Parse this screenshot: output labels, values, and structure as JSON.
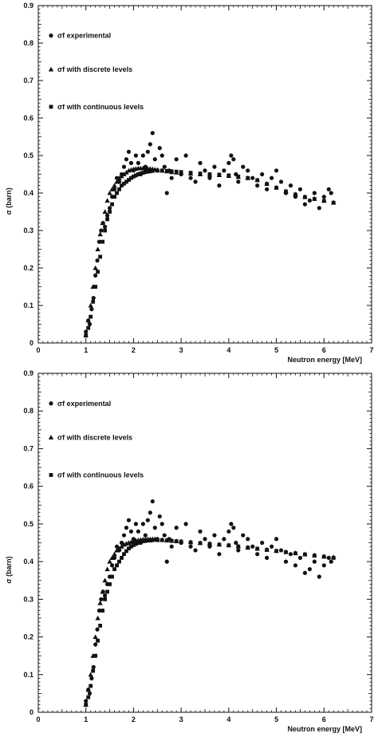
{
  "chart_data": [
    {
      "type": "scatter",
      "title": "",
      "xlabel": "Neutron energy [MeV]",
      "ylabel": "σ (barn)",
      "xlim": [
        0,
        7
      ],
      "ylim": [
        0,
        0.9
      ],
      "xticks": [
        "0",
        "1",
        "2",
        "3",
        "4",
        "5",
        "6",
        "7"
      ],
      "yticks": [
        "0",
        "0.1",
        "0.2",
        "0.3",
        "0.4",
        "0.5",
        "0.6",
        "0.7",
        "0.8",
        "0.9"
      ],
      "grid": false,
      "legend_position": "top-left",
      "series": [
        {
          "name": "σf experimental",
          "marker": "circle",
          "x": [
            1.0,
            1.05,
            1.08,
            1.12,
            1.16,
            1.2,
            1.24,
            1.28,
            1.32,
            1.36,
            1.4,
            1.45,
            1.5,
            1.55,
            1.6,
            1.65,
            1.7,
            1.75,
            1.8,
            1.85,
            1.9,
            1.95,
            2.0,
            2.05,
            2.1,
            2.15,
            2.2,
            2.25,
            2.3,
            2.35,
            2.4,
            2.45,
            2.5,
            2.55,
            2.6,
            2.65,
            2.7,
            2.75,
            2.8,
            2.9,
            3.0,
            3.1,
            3.2,
            3.3,
            3.4,
            3.5,
            3.6,
            3.7,
            3.8,
            3.9,
            4.0,
            4.05,
            4.1,
            4.15,
            4.2,
            4.3,
            4.4,
            4.5,
            4.6,
            4.7,
            4.8,
            4.9,
            5.0,
            5.1,
            5.2,
            5.3,
            5.4,
            5.5,
            5.6,
            5.7,
            5.8,
            5.9,
            6.0,
            6.1,
            6.15
          ],
          "y": [
            0.03,
            0.06,
            0.05,
            0.09,
            0.12,
            0.18,
            0.22,
            0.27,
            0.3,
            0.32,
            0.31,
            0.34,
            0.36,
            0.39,
            0.41,
            0.44,
            0.43,
            0.45,
            0.47,
            0.49,
            0.51,
            0.48,
            0.46,
            0.5,
            0.48,
            0.45,
            0.5,
            0.47,
            0.51,
            0.53,
            0.56,
            0.49,
            0.46,
            0.52,
            0.5,
            0.47,
            0.4,
            0.46,
            0.44,
            0.49,
            0.45,
            0.5,
            0.44,
            0.43,
            0.48,
            0.46,
            0.44,
            0.47,
            0.42,
            0.46,
            0.48,
            0.5,
            0.49,
            0.45,
            0.43,
            0.47,
            0.46,
            0.44,
            0.42,
            0.45,
            0.41,
            0.44,
            0.46,
            0.43,
            0.4,
            0.42,
            0.39,
            0.41,
            0.37,
            0.38,
            0.4,
            0.36,
            0.39,
            0.41,
            0.4
          ]
        },
        {
          "name": "σf  with discrete levels",
          "marker": "triangle",
          "x": [
            1.0,
            1.05,
            1.1,
            1.15,
            1.2,
            1.25,
            1.3,
            1.35,
            1.4,
            1.45,
            1.5,
            1.55,
            1.6,
            1.65,
            1.7,
            1.75,
            1.8,
            1.85,
            1.9,
            1.95,
            2.0,
            2.05,
            2.1,
            2.15,
            2.2,
            2.25,
            2.3,
            2.35,
            2.4,
            2.45,
            2.5,
            2.6,
            2.7,
            2.8,
            2.9,
            3.0,
            3.2,
            3.4,
            3.6,
            3.8,
            4.0,
            4.2,
            4.4,
            4.6,
            4.8,
            5.0,
            5.2,
            5.4,
            5.6,
            5.8,
            6.0,
            6.2
          ],
          "y": [
            0.02,
            0.06,
            0.1,
            0.15,
            0.2,
            0.25,
            0.29,
            0.32,
            0.35,
            0.38,
            0.4,
            0.41,
            0.42,
            0.43,
            0.44,
            0.445,
            0.45,
            0.455,
            0.46,
            0.462,
            0.464,
            0.465,
            0.466,
            0.466,
            0.466,
            0.466,
            0.465,
            0.465,
            0.464,
            0.463,
            0.462,
            0.46,
            0.458,
            0.456,
            0.455,
            0.454,
            0.452,
            0.45,
            0.449,
            0.448,
            0.446,
            0.443,
            0.44,
            0.435,
            0.425,
            0.415,
            0.405,
            0.397,
            0.39,
            0.385,
            0.38,
            0.375
          ]
        },
        {
          "name": "σf with continuous levels",
          "marker": "square",
          "x": [
            1.0,
            1.05,
            1.1,
            1.15,
            1.2,
            1.25,
            1.3,
            1.35,
            1.4,
            1.45,
            1.5,
            1.55,
            1.6,
            1.65,
            1.7,
            1.75,
            1.8,
            1.85,
            1.9,
            1.95,
            2.0,
            2.05,
            2.1,
            2.15,
            2.2,
            2.25,
            2.3,
            2.35,
            2.4,
            2.5,
            2.6,
            2.7,
            2.8,
            2.9,
            3.0,
            3.2,
            3.4,
            3.6,
            3.8,
            4.0,
            4.2,
            4.4,
            4.6,
            4.8,
            5.0,
            5.2,
            5.4,
            5.6,
            5.8,
            6.0,
            6.2
          ],
          "y": [
            0.02,
            0.04,
            0.07,
            0.11,
            0.15,
            0.19,
            0.23,
            0.27,
            0.3,
            0.33,
            0.35,
            0.37,
            0.39,
            0.4,
            0.41,
            0.42,
            0.425,
            0.43,
            0.435,
            0.44,
            0.444,
            0.447,
            0.45,
            0.452,
            0.454,
            0.456,
            0.457,
            0.458,
            0.459,
            0.46,
            0.46,
            0.459,
            0.458,
            0.457,
            0.456,
            0.454,
            0.452,
            0.45,
            0.449,
            0.447,
            0.444,
            0.44,
            0.434,
            0.424,
            0.414,
            0.404,
            0.396,
            0.389,
            0.384,
            0.379,
            0.374
          ]
        }
      ]
    },
    {
      "type": "scatter",
      "title": "",
      "xlabel": "Neutron energy [MeV]",
      "ylabel": "σ (barn)",
      "xlim": [
        0,
        7
      ],
      "ylim": [
        0,
        0.9
      ],
      "xticks": [
        "0",
        "1",
        "2",
        "3",
        "4",
        "5",
        "6",
        "7"
      ],
      "yticks": [
        "0",
        "0.1",
        "0.2",
        "0.3",
        "0.4",
        "0.5",
        "0.6",
        "0.7",
        "0.8",
        "0.9"
      ],
      "grid": false,
      "legend_position": "top-left",
      "series": [
        {
          "name": "σf experimental",
          "marker": "circle",
          "x": [
            1.0,
            1.05,
            1.08,
            1.12,
            1.16,
            1.2,
            1.24,
            1.28,
            1.32,
            1.36,
            1.4,
            1.45,
            1.5,
            1.55,
            1.6,
            1.65,
            1.7,
            1.75,
            1.8,
            1.85,
            1.9,
            1.95,
            2.0,
            2.05,
            2.1,
            2.15,
            2.2,
            2.25,
            2.3,
            2.35,
            2.4,
            2.45,
            2.5,
            2.55,
            2.6,
            2.65,
            2.7,
            2.75,
            2.8,
            2.9,
            3.0,
            3.1,
            3.2,
            3.3,
            3.4,
            3.5,
            3.6,
            3.7,
            3.8,
            3.9,
            4.0,
            4.05,
            4.1,
            4.15,
            4.2,
            4.3,
            4.4,
            4.5,
            4.6,
            4.7,
            4.8,
            4.9,
            5.0,
            5.1,
            5.2,
            5.3,
            5.4,
            5.5,
            5.6,
            5.7,
            5.8,
            5.9,
            6.0,
            6.1,
            6.15
          ],
          "y": [
            0.03,
            0.06,
            0.05,
            0.09,
            0.12,
            0.18,
            0.22,
            0.27,
            0.3,
            0.32,
            0.31,
            0.34,
            0.36,
            0.39,
            0.41,
            0.44,
            0.43,
            0.45,
            0.47,
            0.49,
            0.51,
            0.48,
            0.46,
            0.5,
            0.48,
            0.45,
            0.5,
            0.47,
            0.51,
            0.53,
            0.56,
            0.49,
            0.46,
            0.52,
            0.5,
            0.47,
            0.4,
            0.46,
            0.44,
            0.49,
            0.45,
            0.5,
            0.44,
            0.43,
            0.48,
            0.46,
            0.44,
            0.47,
            0.42,
            0.46,
            0.48,
            0.5,
            0.49,
            0.45,
            0.43,
            0.47,
            0.46,
            0.44,
            0.42,
            0.45,
            0.41,
            0.44,
            0.46,
            0.43,
            0.4,
            0.42,
            0.39,
            0.41,
            0.37,
            0.38,
            0.4,
            0.36,
            0.39,
            0.41,
            0.4
          ]
        },
        {
          "name": "σf  with discrete levels",
          "marker": "triangle",
          "x": [
            1.0,
            1.05,
            1.1,
            1.15,
            1.2,
            1.25,
            1.3,
            1.35,
            1.4,
            1.45,
            1.5,
            1.55,
            1.6,
            1.65,
            1.7,
            1.75,
            1.8,
            1.85,
            1.9,
            1.95,
            2.0,
            2.05,
            2.1,
            2.15,
            2.2,
            2.25,
            2.3,
            2.35,
            2.4,
            2.45,
            2.5,
            2.6,
            2.7,
            2.8,
            2.9,
            3.0,
            3.2,
            3.4,
            3.6,
            3.8,
            4.0,
            4.2,
            4.4,
            4.6,
            4.8,
            5.0,
            5.2,
            5.4,
            5.6,
            5.8,
            6.0,
            6.2
          ],
          "y": [
            0.02,
            0.06,
            0.1,
            0.15,
            0.2,
            0.25,
            0.29,
            0.32,
            0.35,
            0.38,
            0.4,
            0.41,
            0.42,
            0.43,
            0.435,
            0.44,
            0.445,
            0.448,
            0.45,
            0.452,
            0.454,
            0.456,
            0.457,
            0.458,
            0.459,
            0.46,
            0.46,
            0.46,
            0.46,
            0.46,
            0.459,
            0.458,
            0.457,
            0.456,
            0.455,
            0.454,
            0.452,
            0.45,
            0.448,
            0.446,
            0.444,
            0.441,
            0.438,
            0.435,
            0.432,
            0.429,
            0.426,
            0.423,
            0.42,
            0.417,
            0.414,
            0.412
          ]
        },
        {
          "name": "σf with continuous levels",
          "marker": "square",
          "x": [
            1.0,
            1.05,
            1.1,
            1.15,
            1.2,
            1.25,
            1.3,
            1.35,
            1.4,
            1.45,
            1.5,
            1.55,
            1.6,
            1.65,
            1.7,
            1.75,
            1.8,
            1.85,
            1.9,
            1.95,
            2.0,
            2.05,
            2.1,
            2.15,
            2.2,
            2.25,
            2.3,
            2.35,
            2.4,
            2.5,
            2.6,
            2.7,
            2.8,
            2.9,
            3.0,
            3.2,
            3.4,
            3.6,
            3.8,
            4.0,
            4.2,
            4.4,
            4.6,
            4.8,
            5.0,
            5.2,
            5.4,
            5.6,
            5.8,
            6.0,
            6.2
          ],
          "y": [
            0.02,
            0.04,
            0.07,
            0.11,
            0.15,
            0.19,
            0.23,
            0.27,
            0.3,
            0.32,
            0.34,
            0.36,
            0.38,
            0.39,
            0.4,
            0.41,
            0.42,
            0.428,
            0.435,
            0.44,
            0.444,
            0.447,
            0.45,
            0.452,
            0.454,
            0.455,
            0.456,
            0.456,
            0.457,
            0.457,
            0.457,
            0.456,
            0.455,
            0.454,
            0.453,
            0.451,
            0.449,
            0.447,
            0.445,
            0.443,
            0.44,
            0.437,
            0.434,
            0.431,
            0.428,
            0.425,
            0.422,
            0.419,
            0.416,
            0.413,
            0.41
          ]
        }
      ]
    }
  ]
}
